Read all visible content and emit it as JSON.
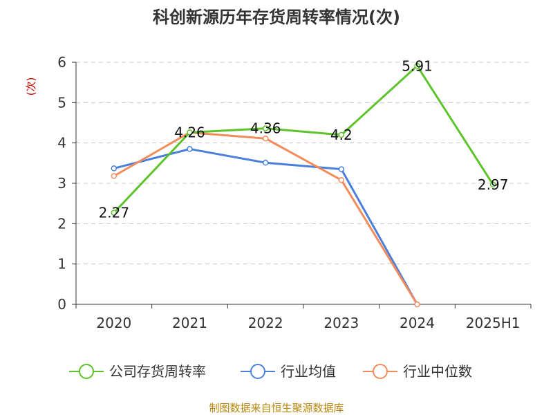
{
  "chart_data": {
    "type": "line",
    "title": "科创新源历年存货周转率情况(次)",
    "ylabel": "(次)",
    "categories": [
      "2020",
      "2021",
      "2022",
      "2023",
      "2024",
      "2025H1"
    ],
    "y_ticks": [
      "0",
      "1",
      "2",
      "3",
      "4",
      "5",
      "6"
    ],
    "ylim": [
      0,
      6
    ],
    "grid": true,
    "legend_position": "bottom",
    "series": [
      {
        "name": "公司存货周转率",
        "color": "#5cc42a",
        "values": [
          2.27,
          4.26,
          4.36,
          4.2,
          5.91,
          2.97
        ],
        "labels": [
          "2.27",
          "4.26",
          "4.36",
          "4.2",
          "5.91",
          "2.97"
        ]
      },
      {
        "name": "行业均值",
        "color": "#4a7fdc",
        "values": [
          3.37,
          3.85,
          3.51,
          3.35,
          0,
          null
        ],
        "labels": null
      },
      {
        "name": "行业中位数",
        "color": "#f28c5a",
        "values": [
          3.18,
          4.26,
          4.11,
          3.08,
          0,
          null
        ],
        "labels": null
      }
    ]
  },
  "source": "制图数据来自恒生聚源数据库",
  "colors": {
    "ylabel": "#cc0000",
    "source": "#b8860b",
    "grid": "#c8c8c8",
    "axis": "#333333"
  }
}
